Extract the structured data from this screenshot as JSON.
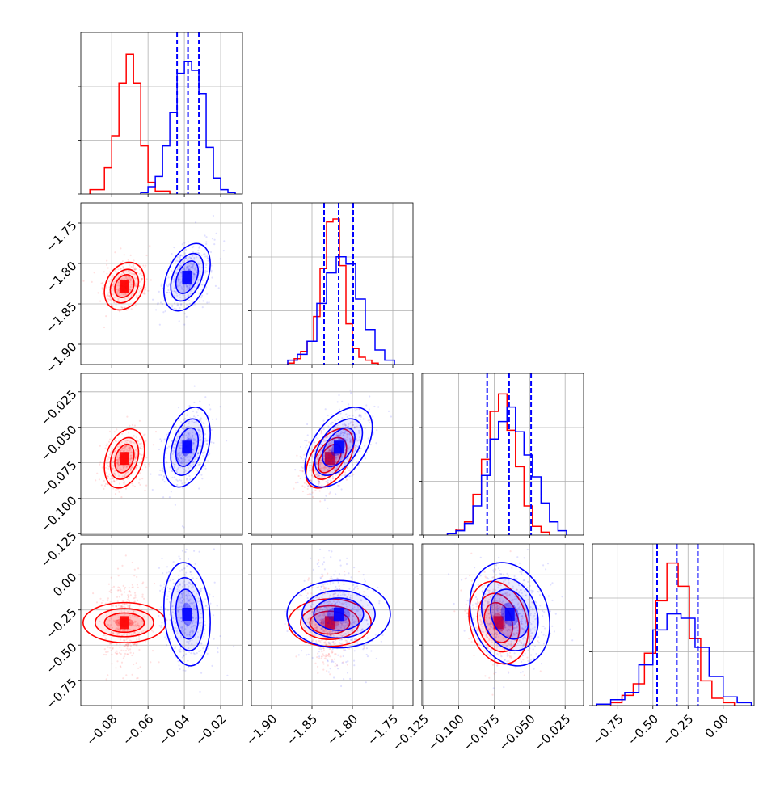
{
  "colors": {
    "red": "#ff0000",
    "blue": "#0000ff",
    "grid": "#b0b0b0",
    "axes": "#000000"
  },
  "chart_data": {
    "type": "corner",
    "parameters": [
      {
        "range": [
          -0.097,
          -0.008
        ],
        "ticks": [
          -0.08,
          -0.06,
          -0.04,
          -0.02
        ],
        "ticklabels": [
          "−0.08",
          "−0.06",
          "−0.04",
          "−0.02"
        ]
      },
      {
        "range": [
          -1.925,
          -1.725
        ],
        "ticks": [
          -1.9,
          -1.85,
          -1.8,
          -1.75
        ],
        "ticklabels": [
          "−1.90",
          "−1.85",
          "−1.80",
          "−1.75"
        ]
      },
      {
        "range": [
          -0.126,
          -0.012
        ],
        "ticks": [
          -0.125,
          -0.1,
          -0.075,
          -0.05,
          -0.025
        ],
        "ticklabels": [
          "−0.125",
          "−0.100",
          "−0.075",
          "−0.050",
          "−0.025"
        ]
      },
      {
        "range": [
          -0.93,
          0.22
        ],
        "ticks": [
          -0.75,
          -0.5,
          -0.25,
          0.0
        ],
        "ticklabels": [
          "−0.75",
          "−0.50",
          "−0.25",
          "0.00"
        ]
      }
    ],
    "series": [
      {
        "color": "red",
        "mean": [
          -0.073,
          -1.828,
          -0.072,
          -0.34
        ],
        "std": [
          0.0045,
          0.012,
          0.0085,
          0.12
        ],
        "corr": [
          [
            1,
            0.25,
            0.3,
            0.0
          ],
          [
            0.25,
            1,
            0.5,
            0.0
          ],
          [
            0.3,
            0.5,
            1,
            -0.2
          ],
          [
            0.0,
            0.0,
            -0.2,
            1
          ]
        ],
        "histograms": [
          {
            "edges": [
              -0.092,
              -0.088,
              -0.084,
              -0.08,
              -0.076,
              -0.072,
              -0.068,
              -0.064,
              -0.06,
              -0.056,
              -0.052,
              -0.048
            ],
            "counts": [
              0.03,
              0.03,
              0.18,
              0.4,
              0.76,
              0.96,
              0.76,
              0.33,
              0.08,
              0.02,
              0.02
            ]
          },
          {
            "edges": [
              -1.88,
              -1.872,
              -1.864,
              -1.856,
              -1.848,
              -1.84,
              -1.832,
              -1.824,
              -1.816,
              -1.808,
              -1.8,
              -1.792,
              -1.784,
              -1.776,
              -1.768
            ],
            "counts": [
              0.01,
              0.04,
              0.09,
              0.16,
              0.33,
              0.66,
              0.98,
              1.0,
              0.68,
              0.28,
              0.11,
              0.05,
              0.03,
              0.01
            ]
          },
          {
            "edges": [
              -0.108,
              -0.102,
              -0.096,
              -0.09,
              -0.084,
              -0.078,
              -0.072,
              -0.066,
              -0.06,
              -0.054,
              -0.048,
              -0.042,
              -0.036
            ],
            "counts": [
              0.01,
              0.04,
              0.09,
              0.28,
              0.52,
              0.85,
              0.97,
              0.72,
              0.47,
              0.2,
              0.06,
              0.02
            ]
          },
          {
            "edges": [
              -0.8,
              -0.72,
              -0.64,
              -0.56,
              -0.48,
              -0.4,
              -0.32,
              -0.24,
              -0.16,
              -0.08,
              0.0,
              0.08
            ],
            "counts": [
              0.02,
              0.07,
              0.15,
              0.36,
              0.72,
              0.98,
              0.82,
              0.46,
              0.17,
              0.05,
              0.02
            ]
          }
        ]
      },
      {
        "color": "blue",
        "mean": [
          -0.0385,
          -1.817,
          -0.064,
          -0.28
        ],
        "std": [
          0.0052,
          0.017,
          0.0115,
          0.15
        ],
        "corr": [
          [
            1,
            0.4,
            0.35,
            -0.15
          ],
          [
            0.4,
            1,
            0.5,
            0.0
          ],
          [
            0.35,
            0.5,
            1,
            -0.2
          ],
          [
            -0.15,
            0.0,
            -0.2,
            1
          ]
        ],
        "quantiles": [
          [
            -0.044,
            -0.038,
            -0.032
          ],
          [
            -1.835,
            -1.817,
            -1.799
          ],
          [
            -0.08,
            -0.0645,
            -0.049
          ],
          [
            -0.47,
            -0.33,
            -0.18
          ]
        ],
        "histograms": [
          {
            "edges": [
              -0.064,
              -0.06,
              -0.056,
              -0.052,
              -0.048,
              -0.044,
              -0.04,
              -0.036,
              -0.032,
              -0.028,
              -0.024,
              -0.02,
              -0.016,
              -0.012
            ],
            "counts": [
              0.01,
              0.05,
              0.12,
              0.33,
              0.56,
              0.83,
              0.91,
              0.85,
              0.69,
              0.32,
              0.11,
              0.03,
              0.01
            ]
          },
          {
            "edges": [
              -1.88,
              -1.868,
              -1.856,
              -1.844,
              -1.832,
              -1.82,
              -1.808,
              -1.796,
              -1.784,
              -1.772,
              -1.76,
              -1.748
            ],
            "counts": [
              0.03,
              0.07,
              0.16,
              0.42,
              0.63,
              0.74,
              0.69,
              0.45,
              0.24,
              0.1,
              0.03
            ]
          },
          {
            "edges": [
              -0.108,
              -0.102,
              -0.096,
              -0.09,
              -0.084,
              -0.078,
              -0.072,
              -0.066,
              -0.06,
              -0.054,
              -0.048,
              -0.042,
              -0.036,
              -0.03,
              -0.024
            ],
            "counts": [
              0.01,
              0.03,
              0.08,
              0.2,
              0.41,
              0.66,
              0.78,
              0.88,
              0.71,
              0.55,
              0.4,
              0.22,
              0.09,
              0.03
            ]
          },
          {
            "edges": [
              -0.9,
              -0.8,
              -0.7,
              -0.6,
              -0.5,
              -0.4,
              -0.3,
              -0.2,
              -0.1,
              0.0,
              0.1,
              0.2
            ],
            "counts": [
              0.01,
              0.04,
              0.09,
              0.28,
              0.52,
              0.63,
              0.6,
              0.4,
              0.2,
              0.06,
              0.02
            ]
          }
        ]
      }
    ],
    "grid": true,
    "legend": "none"
  }
}
